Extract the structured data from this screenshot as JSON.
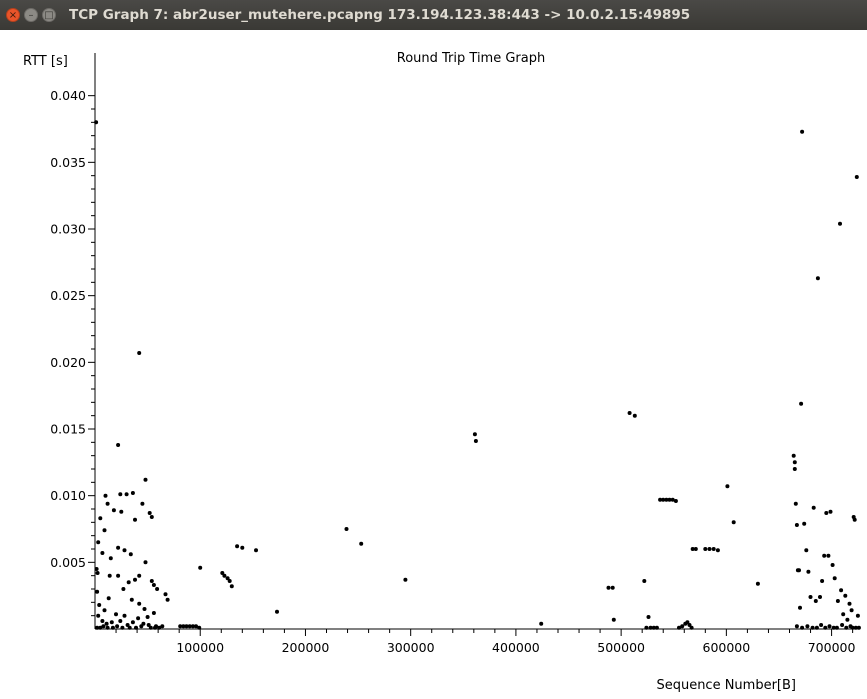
{
  "window": {
    "title": "TCP Graph 7: abr2user_mutehere.pcapng 173.194.123.38:443 -> 10.0.2.15:49895",
    "buttons": {
      "close": "×",
      "minimize": "–",
      "maximize": "□"
    }
  },
  "chart_data": {
    "type": "scatter",
    "title": "Round Trip Time Graph",
    "xlabel": "Sequence Number[B]",
    "ylabel": "RTT [s]",
    "xlim": [
      0,
      727000
    ],
    "ylim": [
      0,
      0.0405
    ],
    "x_ticks": [
      100000,
      200000,
      300000,
      400000,
      500000,
      600000,
      700000
    ],
    "x_tick_labels": [
      "100000",
      "200000",
      "300000",
      "400000",
      "500000",
      "600000",
      "700000"
    ],
    "y_ticks": [
      0.005,
      0.01,
      0.015,
      0.02,
      0.025,
      0.03,
      0.035,
      0.04
    ],
    "y_tick_labels": [
      "0.005",
      "0.010",
      "0.015",
      "0.020",
      "0.025",
      "0.030",
      "0.035",
      "0.040"
    ],
    "grid": false,
    "legend": "none",
    "colors": {
      "marker": "#000000",
      "axis": "#000000"
    },
    "points": [
      [
        1000,
        0.038
      ],
      [
        42000,
        0.0207
      ],
      [
        22000,
        0.0138
      ],
      [
        48000,
        0.0112
      ],
      [
        10000,
        0.01
      ],
      [
        24000,
        0.0101
      ],
      [
        30000,
        0.0101
      ],
      [
        36000,
        0.0102
      ],
      [
        45000,
        0.0094
      ],
      [
        12000,
        0.0094
      ],
      [
        18000,
        0.0089
      ],
      [
        25000,
        0.0088
      ],
      [
        5000,
        0.0083
      ],
      [
        38000,
        0.0082
      ],
      [
        52000,
        0.0087
      ],
      [
        54000,
        0.0084
      ],
      [
        3000,
        0.0065
      ],
      [
        9000,
        0.0074
      ],
      [
        22000,
        0.0061
      ],
      [
        28000,
        0.0059
      ],
      [
        7000,
        0.0057
      ],
      [
        34000,
        0.0056
      ],
      [
        15000,
        0.0053
      ],
      [
        48000,
        0.005
      ],
      [
        1500,
        0.0045
      ],
      [
        2500,
        0.0042
      ],
      [
        14000,
        0.004
      ],
      [
        22000,
        0.004
      ],
      [
        32000,
        0.0035
      ],
      [
        38000,
        0.0037
      ],
      [
        42000,
        0.004
      ],
      [
        54000,
        0.0036
      ],
      [
        56000,
        0.0033
      ],
      [
        59000,
        0.003
      ],
      [
        27000,
        0.003
      ],
      [
        2000,
        0.0028
      ],
      [
        67000,
        0.0026
      ],
      [
        69000,
        0.0022
      ],
      [
        13000,
        0.0023
      ],
      [
        35000,
        0.0022
      ],
      [
        42000,
        0.0019
      ],
      [
        4000,
        0.0018
      ],
      [
        47000,
        0.0015
      ],
      [
        9000,
        0.0014
      ],
      [
        56000,
        0.0012
      ],
      [
        3000,
        0.001
      ],
      [
        20000,
        0.0011
      ],
      [
        28000,
        0.001
      ],
      [
        50000,
        0.0009
      ],
      [
        7000,
        0.0006
      ],
      [
        11000,
        0.0004
      ],
      [
        16000,
        0.0005
      ],
      [
        24000,
        0.0006
      ],
      [
        31000,
        0.0003
      ],
      [
        36000,
        0.0005
      ],
      [
        41000,
        0.0008
      ],
      [
        46000,
        0.0004
      ],
      [
        51000,
        0.0003
      ],
      [
        58000,
        0.0002
      ],
      [
        2000,
        0.0001
      ],
      [
        5000,
        0.0001
      ],
      [
        8000,
        0.0002
      ],
      [
        12000,
        0.0001
      ],
      [
        17000,
        0.0001
      ],
      [
        21000,
        0.0002
      ],
      [
        26000,
        0.0001
      ],
      [
        33000,
        0.0001
      ],
      [
        39000,
        0.0001
      ],
      [
        44000,
        0.0002
      ],
      [
        53000,
        0.0001
      ],
      [
        57000,
        0.0001
      ],
      [
        61000,
        0.0001
      ],
      [
        64000,
        0.0002
      ],
      [
        81000,
        0.0002
      ],
      [
        84000,
        0.0002
      ],
      [
        87000,
        0.0002
      ],
      [
        90000,
        0.0002
      ],
      [
        93000,
        0.0002
      ],
      [
        96000,
        0.0002
      ],
      [
        99000,
        0.0001
      ],
      [
        100000,
        0.0046
      ],
      [
        121000,
        0.0042
      ],
      [
        123000,
        0.004
      ],
      [
        126000,
        0.0038
      ],
      [
        128000,
        0.0036
      ],
      [
        130000,
        0.0032
      ],
      [
        135000,
        0.0062
      ],
      [
        140000,
        0.0061
      ],
      [
        153000,
        0.0059
      ],
      [
        173000,
        0.0013
      ],
      [
        239000,
        0.0075
      ],
      [
        253000,
        0.0064
      ],
      [
        295000,
        0.0037
      ],
      [
        361000,
        0.0146
      ],
      [
        362000,
        0.0141
      ],
      [
        424000,
        0.0004
      ],
      [
        488000,
        0.0031
      ],
      [
        492000,
        0.0031
      ],
      [
        493000,
        0.0007
      ],
      [
        508000,
        0.0162
      ],
      [
        513000,
        0.016
      ],
      [
        522000,
        0.0036
      ],
      [
        526000,
        0.0009
      ],
      [
        524000,
        0.0001
      ],
      [
        528000,
        0.0001
      ],
      [
        531000,
        0.0001
      ],
      [
        534000,
        0.0001
      ],
      [
        537000,
        0.0097
      ],
      [
        540000,
        0.0097
      ],
      [
        543000,
        0.0097
      ],
      [
        546000,
        0.0097
      ],
      [
        549000,
        0.0097
      ],
      [
        552000,
        0.0096
      ],
      [
        555000,
        0.0001
      ],
      [
        558000,
        0.0002
      ],
      [
        561000,
        0.0004
      ],
      [
        563000,
        0.0005
      ],
      [
        565000,
        0.0003
      ],
      [
        567000,
        0.0001
      ],
      [
        568000,
        0.006
      ],
      [
        571000,
        0.006
      ],
      [
        580000,
        0.006
      ],
      [
        584000,
        0.006
      ],
      [
        588000,
        0.006
      ],
      [
        592000,
        0.0059
      ],
      [
        601000,
        0.0107
      ],
      [
        607000,
        0.008
      ],
      [
        630000,
        0.0034
      ],
      [
        664000,
        0.013
      ],
      [
        665000,
        0.0125
      ],
      [
        665000,
        0.012
      ],
      [
        666000,
        0.0094
      ],
      [
        667000,
        0.0078
      ],
      [
        668000,
        0.0044
      ],
      [
        669000,
        0.0044
      ],
      [
        670000,
        0.0016
      ],
      [
        671000,
        0.0169
      ],
      [
        672000,
        0.0373
      ],
      [
        674000,
        0.0079
      ],
      [
        676000,
        0.0059
      ],
      [
        678000,
        0.0043
      ],
      [
        680000,
        0.0024
      ],
      [
        683000,
        0.0091
      ],
      [
        685000,
        0.0021
      ],
      [
        687000,
        0.0263
      ],
      [
        689000,
        0.0024
      ],
      [
        691000,
        0.0036
      ],
      [
        693000,
        0.0055
      ],
      [
        695000,
        0.0087
      ],
      [
        697000,
        0.0055
      ],
      [
        699000,
        0.0088
      ],
      [
        701000,
        0.0048
      ],
      [
        703000,
        0.0038
      ],
      [
        706000,
        0.0021
      ],
      [
        708000,
        0.0304
      ],
      [
        709000,
        0.0029
      ],
      [
        711000,
        0.0011
      ],
      [
        713000,
        0.0025
      ],
      [
        715000,
        0.0007
      ],
      [
        717000,
        0.0019
      ],
      [
        719000,
        0.0014
      ],
      [
        721000,
        0.0084
      ],
      [
        722000,
        0.0082
      ],
      [
        724000,
        0.0339
      ],
      [
        725000,
        0.001
      ],
      [
        667000,
        0.0002
      ],
      [
        672000,
        0.0001
      ],
      [
        677000,
        0.0002
      ],
      [
        682000,
        0.0001
      ],
      [
        686000,
        0.0001
      ],
      [
        690000,
        0.0003
      ],
      [
        694000,
        0.0001
      ],
      [
        698000,
        0.0002
      ],
      [
        702000,
        0.0001
      ],
      [
        705000,
        0.0001
      ],
      [
        710000,
        0.0003
      ],
      [
        714000,
        0.0001
      ],
      [
        718000,
        0.0002
      ],
      [
        720000,
        0.0001
      ],
      [
        723000,
        0.0001
      ],
      [
        726000,
        0.0001
      ]
    ]
  }
}
